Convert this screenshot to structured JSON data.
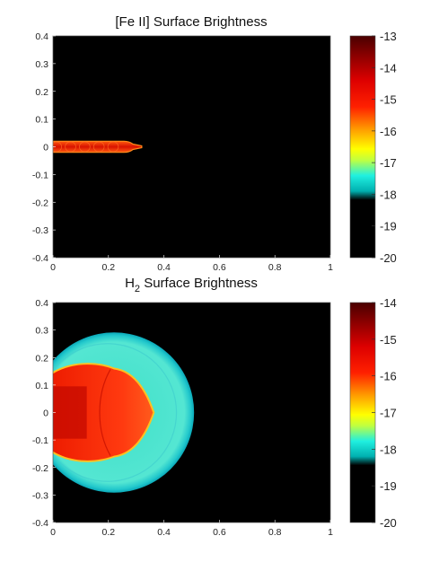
{
  "chart_data": [
    {
      "type": "heatmap",
      "title": "[Fe II] Surface Brightness",
      "title_subscript": "",
      "xlabel": "",
      "ylabel": "",
      "xlim": [
        0,
        1
      ],
      "ylim": [
        -0.4,
        0.4
      ],
      "x_ticks": [
        "0",
        "0.2",
        "0.4",
        "0.6",
        "0.8",
        "1"
      ],
      "y_ticks": [
        "0.4",
        "0.3",
        "0.2",
        "0.1",
        "0",
        "-0.1",
        "-0.2",
        "-0.3",
        "-0.4"
      ],
      "colorbar": {
        "min": -20,
        "max": -13,
        "ticks": [
          "-13",
          "-14",
          "-15",
          "-16",
          "-17",
          "-18",
          "-19",
          "-20"
        ]
      },
      "grid": false,
      "emission": {
        "shape": "narrow jet along y = 0",
        "x_extent": [
          0,
          0.32
        ],
        "y_half_width": 0.02,
        "peak_level": -14.3
      }
    },
    {
      "type": "heatmap",
      "title": "H",
      "title_subscript": "2",
      "title_suffix": " Surface Brightness",
      "xlabel": "",
      "ylabel": "",
      "xlim": [
        0,
        1
      ],
      "ylim": [
        -0.4,
        0.4
      ],
      "x_ticks": [
        "0",
        "0.2",
        "0.4",
        "0.6",
        "0.8",
        "1"
      ],
      "y_ticks": [
        "0.4",
        "0.3",
        "0.2",
        "0.1",
        "0",
        "-0.1",
        "-0.2",
        "-0.3",
        "-0.4"
      ],
      "colorbar": {
        "min": -20,
        "max": -14,
        "ticks": [
          "-14",
          "-15",
          "-16",
          "-17",
          "-18",
          "-19",
          "-20"
        ]
      },
      "grid": false,
      "emission": {
        "outer_shell": {
          "center_x": 0.22,
          "radius": 0.29,
          "level": -17.7
        },
        "bow_shock": {
          "x_extent": [
            0,
            0.36
          ],
          "y_half_width": 0.17,
          "level": -15.8
        }
      }
    }
  ],
  "colors": {
    "background": "#000000",
    "colormap": [
      "#000000",
      "#000000",
      "#00e5e5",
      "#ffff00",
      "#ff9900",
      "#ff0000",
      "#cc0000",
      "#500000"
    ]
  }
}
